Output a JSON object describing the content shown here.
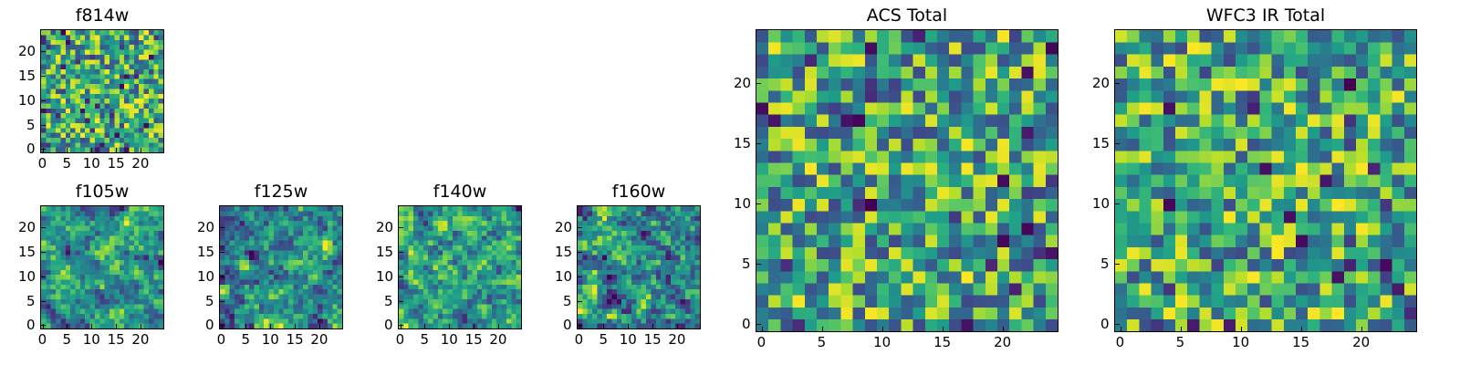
{
  "colormap": "viridis",
  "chart_data": [
    {
      "title": "f814w",
      "type": "heatmap",
      "grid_size": 25,
      "seed": 11,
      "smooth": 0,
      "xticks": [
        "0",
        "5",
        "10",
        "15",
        "20"
      ],
      "yticks": [
        "0",
        "5",
        "10",
        "15",
        "20"
      ],
      "xlim": [
        0,
        24
      ],
      "ylim": [
        0,
        24
      ]
    },
    {
      "title": "f105w",
      "type": "heatmap",
      "grid_size": 25,
      "seed": 23,
      "smooth": 1,
      "xticks": [
        "0",
        "5",
        "10",
        "15",
        "20"
      ],
      "yticks": [
        "0",
        "5",
        "10",
        "15",
        "20"
      ],
      "xlim": [
        0,
        24
      ],
      "ylim": [
        0,
        24
      ]
    },
    {
      "title": "f125w",
      "type": "heatmap",
      "grid_size": 25,
      "seed": 37,
      "smooth": 1,
      "xticks": [
        "0",
        "5",
        "10",
        "15",
        "20"
      ],
      "yticks": [
        "0",
        "5",
        "10",
        "15",
        "20"
      ],
      "xlim": [
        0,
        24
      ],
      "ylim": [
        0,
        24
      ]
    },
    {
      "title": "f140w",
      "type": "heatmap",
      "grid_size": 25,
      "seed": 41,
      "smooth": 1,
      "xticks": [
        "0",
        "5",
        "10",
        "15",
        "20"
      ],
      "yticks": [
        "0",
        "5",
        "10",
        "15",
        "20"
      ],
      "xlim": [
        0,
        24
      ],
      "ylim": [
        0,
        24
      ]
    },
    {
      "title": "f160w",
      "type": "heatmap",
      "grid_size": 25,
      "seed": 53,
      "smooth": 1,
      "xticks": [
        "0",
        "5",
        "10",
        "15",
        "20"
      ],
      "yticks": [
        "0",
        "5",
        "10",
        "15",
        "20"
      ],
      "xlim": [
        0,
        24
      ],
      "ylim": [
        0,
        24
      ]
    },
    {
      "title": "ACS Total",
      "type": "heatmap",
      "grid_size": 25,
      "seed": 67,
      "smooth": 0,
      "xticks": [
        "0",
        "5",
        "10",
        "15",
        "20"
      ],
      "yticks": [
        "0",
        "5",
        "10",
        "15",
        "20"
      ],
      "xlim": [
        0,
        24
      ],
      "ylim": [
        0,
        24
      ]
    },
    {
      "title": "WFC3 IR Total",
      "type": "heatmap",
      "grid_size": 25,
      "seed": 79,
      "smooth": 0,
      "xticks": [
        "0",
        "5",
        "10",
        "15",
        "20"
      ],
      "yticks": [
        "0",
        "5",
        "10",
        "15",
        "20"
      ],
      "xlim": [
        0,
        24
      ],
      "ylim": [
        0,
        24
      ]
    }
  ]
}
